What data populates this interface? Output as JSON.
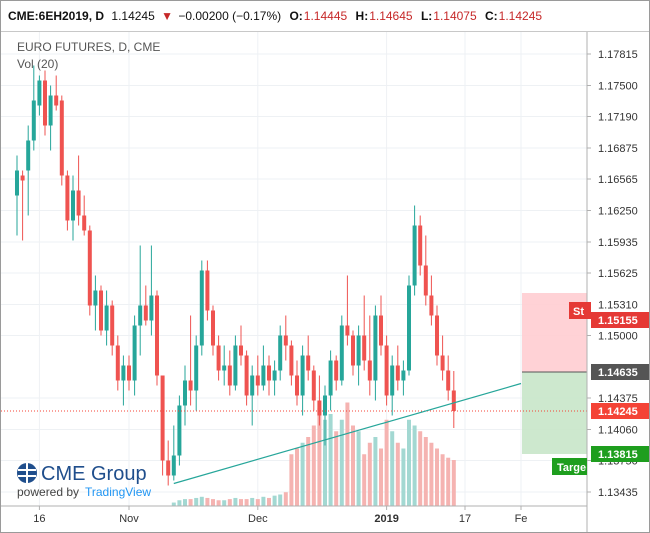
{
  "header": {
    "symbol": "CME:6EH2019, D",
    "last": "1.14245",
    "change": "−0.00200 (−0.17%)",
    "open_label": "O:",
    "open": "1.14445",
    "high_label": "H:",
    "high": "1.14645",
    "low_label": "L:",
    "low": "1.14075",
    "close_label": "C:",
    "close": "1.14245"
  },
  "chart_title": "EURO FUTURES, D, CME",
  "volume_label": "Vol (20)",
  "logo": {
    "brand": "CME Group",
    "powered_by": "powered by",
    "platform": "TradingView"
  },
  "colors": {
    "up": "#26a69a",
    "down": "#ef5350",
    "up_volume": "#a3d8d2",
    "down_volume": "#f5b3b1",
    "trendline": "#26a69a",
    "stop_zone": "#ffcdd2",
    "target_zone": "#c8e6c9",
    "stop_tag": "#e53935",
    "target_tag": "#1e9e1e",
    "entry_tag": "#555555",
    "current_tag": "#f44336"
  },
  "chart_data": {
    "type": "candlestick",
    "y_ticks": [
      "1.17815",
      "1.17500",
      "1.17190",
      "1.16875",
      "1.16565",
      "1.16250",
      "1.15935",
      "1.15625",
      "1.15310",
      "1.15000",
      "1.14375",
      "1.14060",
      "1.13750",
      "1.13435"
    ],
    "x_ticks": [
      "16",
      "Nov",
      "Dec",
      "2019",
      "17",
      "Fe"
    ],
    "ylim": [
      1.13295,
      1.18035
    ],
    "x_tick_index": [
      4,
      20,
      43,
      66,
      80,
      90
    ],
    "price_tags": {
      "stop_label": "St",
      "stop": "1.15155",
      "entry": "1.14635",
      "current": "1.14245",
      "target": "1.13815",
      "target_label": "Targe"
    },
    "trendline": {
      "from": {
        "index": 28,
        "price": 1.1352
      },
      "to": {
        "index": 90,
        "price": 1.1452
      }
    },
    "candles": [
      {
        "o": 1.164,
        "h": 1.168,
        "l": 1.16,
        "c": 1.1665,
        "v": 0
      },
      {
        "o": 1.166,
        "h": 1.1665,
        "l": 1.1595,
        "c": 1.1655,
        "v": 0
      },
      {
        "o": 1.1665,
        "h": 1.171,
        "l": 1.162,
        "c": 1.1695,
        "v": 0
      },
      {
        "o": 1.1695,
        "h": 1.177,
        "l": 1.1685,
        "c": 1.1735,
        "v": 0
      },
      {
        "o": 1.173,
        "h": 1.176,
        "l": 1.172,
        "c": 1.1755,
        "v": 0
      },
      {
        "o": 1.1755,
        "h": 1.1765,
        "l": 1.17,
        "c": 1.171,
        "v": 0
      },
      {
        "o": 1.171,
        "h": 1.175,
        "l": 1.1685,
        "c": 1.174,
        "v": 0
      },
      {
        "o": 1.174,
        "h": 1.176,
        "l": 1.1725,
        "c": 1.173,
        "v": 0
      },
      {
        "o": 1.1735,
        "h": 1.174,
        "l": 1.165,
        "c": 1.166,
        "v": 0
      },
      {
        "o": 1.166,
        "h": 1.1665,
        "l": 1.1605,
        "c": 1.1615,
        "v": 0
      },
      {
        "o": 1.1615,
        "h": 1.166,
        "l": 1.1595,
        "c": 1.1645,
        "v": 0
      },
      {
        "o": 1.1645,
        "h": 1.168,
        "l": 1.161,
        "c": 1.162,
        "v": 0
      },
      {
        "o": 1.162,
        "h": 1.164,
        "l": 1.16,
        "c": 1.1605,
        "v": 0
      },
      {
        "o": 1.1605,
        "h": 1.161,
        "l": 1.152,
        "c": 1.153,
        "v": 0
      },
      {
        "o": 1.153,
        "h": 1.156,
        "l": 1.1505,
        "c": 1.1545,
        "v": 0
      },
      {
        "o": 1.1545,
        "h": 1.155,
        "l": 1.15,
        "c": 1.1505,
        "v": 0
      },
      {
        "o": 1.1505,
        "h": 1.1545,
        "l": 1.149,
        "c": 1.153,
        "v": 0
      },
      {
        "o": 1.153,
        "h": 1.1535,
        "l": 1.148,
        "c": 1.149,
        "v": 0
      },
      {
        "o": 1.149,
        "h": 1.15,
        "l": 1.1445,
        "c": 1.1455,
        "v": 0
      },
      {
        "o": 1.1455,
        "h": 1.148,
        "l": 1.143,
        "c": 1.147,
        "v": 0
      },
      {
        "o": 1.147,
        "h": 1.148,
        "l": 1.1445,
        "c": 1.1455,
        "v": 0
      },
      {
        "o": 1.1455,
        "h": 1.152,
        "l": 1.144,
        "c": 1.151,
        "v": 0
      },
      {
        "o": 1.151,
        "h": 1.159,
        "l": 1.148,
        "c": 1.153,
        "v": 0
      },
      {
        "o": 1.153,
        "h": 1.155,
        "l": 1.151,
        "c": 1.1515,
        "v": 0
      },
      {
        "o": 1.1515,
        "h": 1.159,
        "l": 1.15,
        "c": 1.154,
        "v": 0
      },
      {
        "o": 1.154,
        "h": 1.1545,
        "l": 1.145,
        "c": 1.146,
        "v": 0
      },
      {
        "o": 1.146,
        "h": 1.146,
        "l": 1.136,
        "c": 1.1375,
        "v": 0
      },
      {
        "o": 1.1375,
        "h": 1.1395,
        "l": 1.135,
        "c": 1.136,
        "v": 0
      },
      {
        "o": 1.136,
        "h": 1.141,
        "l": 1.1355,
        "c": 1.138,
        "v": 0.03
      },
      {
        "o": 1.138,
        "h": 1.144,
        "l": 1.137,
        "c": 1.143,
        "v": 0.05
      },
      {
        "o": 1.143,
        "h": 1.147,
        "l": 1.141,
        "c": 1.1455,
        "v": 0.06
      },
      {
        "o": 1.1455,
        "h": 1.152,
        "l": 1.143,
        "c": 1.1445,
        "v": 0.06
      },
      {
        "o": 1.1445,
        "h": 1.15,
        "l": 1.1425,
        "c": 1.149,
        "v": 0.07
      },
      {
        "o": 1.149,
        "h": 1.1575,
        "l": 1.148,
        "c": 1.1565,
        "v": 0.08
      },
      {
        "o": 1.1565,
        "h": 1.1575,
        "l": 1.1515,
        "c": 1.1525,
        "v": 0.07
      },
      {
        "o": 1.1525,
        "h": 1.153,
        "l": 1.148,
        "c": 1.149,
        "v": 0.06
      },
      {
        "o": 1.149,
        "h": 1.15,
        "l": 1.1455,
        "c": 1.1465,
        "v": 0.05
      },
      {
        "o": 1.1465,
        "h": 1.149,
        "l": 1.145,
        "c": 1.147,
        "v": 0.05
      },
      {
        "o": 1.147,
        "h": 1.1485,
        "l": 1.144,
        "c": 1.145,
        "v": 0.06
      },
      {
        "o": 1.145,
        "h": 1.15,
        "l": 1.1445,
        "c": 1.149,
        "v": 0.07
      },
      {
        "o": 1.149,
        "h": 1.151,
        "l": 1.147,
        "c": 1.148,
        "v": 0.06
      },
      {
        "o": 1.148,
        "h": 1.1485,
        "l": 1.143,
        "c": 1.144,
        "v": 0.06
      },
      {
        "o": 1.144,
        "h": 1.147,
        "l": 1.141,
        "c": 1.146,
        "v": 0.07
      },
      {
        "o": 1.146,
        "h": 1.148,
        "l": 1.144,
        "c": 1.145,
        "v": 0.06
      },
      {
        "o": 1.145,
        "h": 1.149,
        "l": 1.1445,
        "c": 1.147,
        "v": 0.08
      },
      {
        "o": 1.147,
        "h": 1.148,
        "l": 1.144,
        "c": 1.1455,
        "v": 0.07
      },
      {
        "o": 1.1455,
        "h": 1.1475,
        "l": 1.144,
        "c": 1.1465,
        "v": 0.09
      },
      {
        "o": 1.1465,
        "h": 1.151,
        "l": 1.1455,
        "c": 1.15,
        "v": 0.1
      },
      {
        "o": 1.15,
        "h": 1.152,
        "l": 1.1475,
        "c": 1.149,
        "v": 0.12
      },
      {
        "o": 1.149,
        "h": 1.1495,
        "l": 1.145,
        "c": 1.146,
        "v": 0.45
      },
      {
        "o": 1.146,
        "h": 1.1475,
        "l": 1.143,
        "c": 1.144,
        "v": 0.5
      },
      {
        "o": 1.144,
        "h": 1.149,
        "l": 1.142,
        "c": 1.148,
        "v": 0.55
      },
      {
        "o": 1.148,
        "h": 1.15,
        "l": 1.1455,
        "c": 1.1465,
        "v": 0.6
      },
      {
        "o": 1.1465,
        "h": 1.147,
        "l": 1.1425,
        "c": 1.1435,
        "v": 0.7
      },
      {
        "o": 1.1435,
        "h": 1.146,
        "l": 1.141,
        "c": 1.142,
        "v": 0.85
      },
      {
        "o": 1.142,
        "h": 1.145,
        "l": 1.139,
        "c": 1.144,
        "v": 0.75
      },
      {
        "o": 1.144,
        "h": 1.1485,
        "l": 1.1425,
        "c": 1.1475,
        "v": 0.8
      },
      {
        "o": 1.1475,
        "h": 1.148,
        "l": 1.1445,
        "c": 1.1455,
        "v": 0.65
      },
      {
        "o": 1.1455,
        "h": 1.152,
        "l": 1.145,
        "c": 1.151,
        "v": 0.75
      },
      {
        "o": 1.151,
        "h": 1.156,
        "l": 1.149,
        "c": 1.15,
        "v": 0.9
      },
      {
        "o": 1.15,
        "h": 1.1505,
        "l": 1.146,
        "c": 1.147,
        "v": 0.7
      },
      {
        "o": 1.147,
        "h": 1.151,
        "l": 1.145,
        "c": 1.15,
        "v": 0.65
      },
      {
        "o": 1.15,
        "h": 1.154,
        "l": 1.1465,
        "c": 1.1475,
        "v": 0.45
      },
      {
        "o": 1.1475,
        "h": 1.152,
        "l": 1.144,
        "c": 1.1455,
        "v": 0.55
      },
      {
        "o": 1.1455,
        "h": 1.153,
        "l": 1.1435,
        "c": 1.152,
        "v": 0.6
      },
      {
        "o": 1.152,
        "h": 1.154,
        "l": 1.148,
        "c": 1.149,
        "v": 0.5
      },
      {
        "o": 1.149,
        "h": 1.15,
        "l": 1.143,
        "c": 1.144,
        "v": 0.75
      },
      {
        "o": 1.144,
        "h": 1.148,
        "l": 1.142,
        "c": 1.147,
        "v": 0.65
      },
      {
        "o": 1.147,
        "h": 1.149,
        "l": 1.1445,
        "c": 1.1455,
        "v": 0.55
      },
      {
        "o": 1.1455,
        "h": 1.1475,
        "l": 1.144,
        "c": 1.1465,
        "v": 0.5
      },
      {
        "o": 1.1465,
        "h": 1.156,
        "l": 1.146,
        "c": 1.155,
        "v": 0.75
      },
      {
        "o": 1.155,
        "h": 1.163,
        "l": 1.154,
        "c": 1.161,
        "v": 0.7
      },
      {
        "o": 1.161,
        "h": 1.162,
        "l": 1.156,
        "c": 1.157,
        "v": 0.65
      },
      {
        "o": 1.157,
        "h": 1.16,
        "l": 1.153,
        "c": 1.154,
        "v": 0.6
      },
      {
        "o": 1.154,
        "h": 1.156,
        "l": 1.151,
        "c": 1.152,
        "v": 0.55
      },
      {
        "o": 1.152,
        "h": 1.153,
        "l": 1.147,
        "c": 1.148,
        "v": 0.5
      },
      {
        "o": 1.148,
        "h": 1.15,
        "l": 1.1455,
        "c": 1.1465,
        "v": 0.45
      },
      {
        "o": 1.1465,
        "h": 1.148,
        "l": 1.1435,
        "c": 1.1445,
        "v": 0.42
      },
      {
        "o": 1.1445,
        "h": 1.14645,
        "l": 1.14075,
        "c": 1.14245,
        "v": 0.4
      }
    ]
  }
}
